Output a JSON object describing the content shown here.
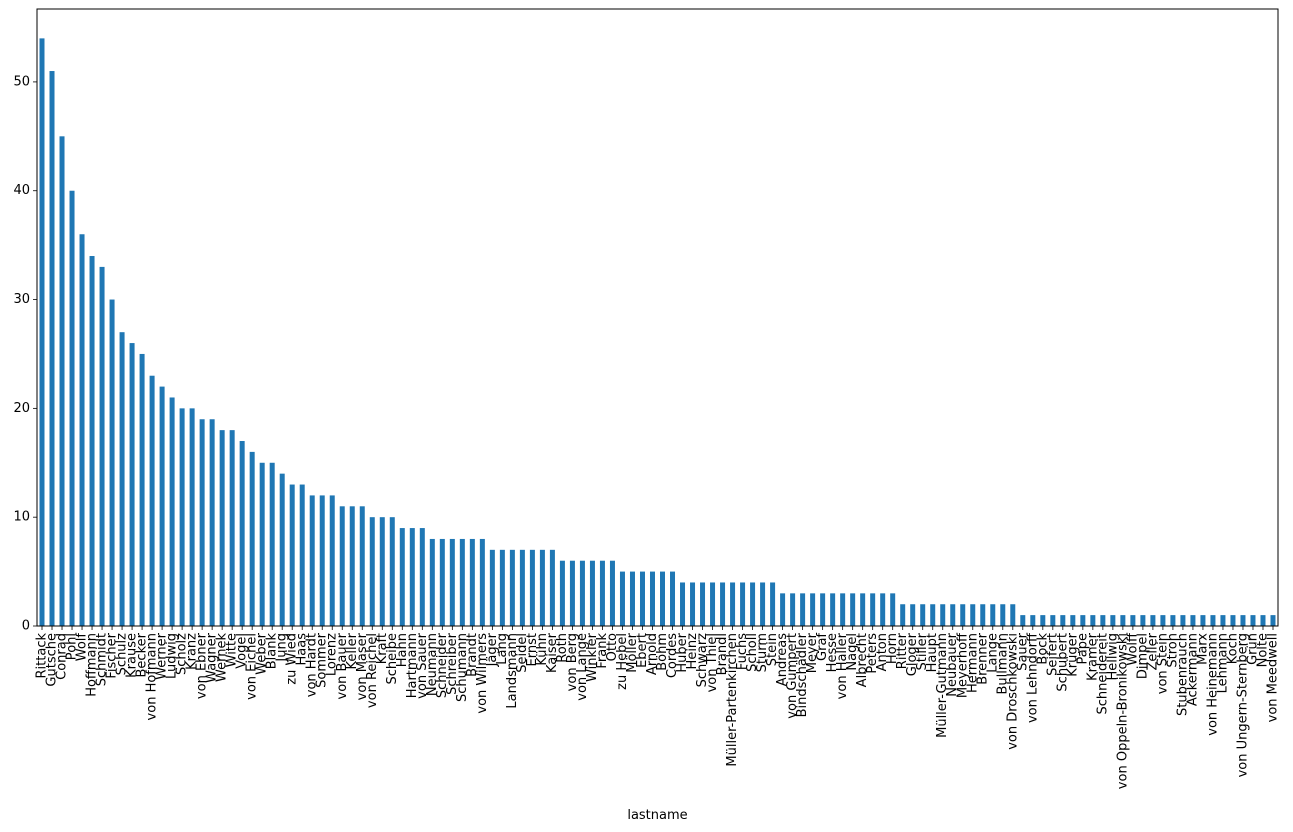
{
  "chart_data": {
    "type": "bar",
    "xlabel": "lastname",
    "ylabel": "",
    "ylim": [
      0,
      56.7
    ],
    "yticks": [
      0,
      10,
      20,
      30,
      40,
      50
    ],
    "grid": false,
    "bar_color": "#1f77b4",
    "categories": [
      "Rittack",
      "Gutsche",
      "Conrad",
      "Pohl",
      "Wolf",
      "Hoffmann",
      "Schmidt",
      "Fischer",
      "Schulz",
      "Krause",
      "Becker",
      "von Hofmann",
      "Werner",
      "Ludwig",
      "Scholz",
      "Kranz",
      "von Ebner",
      "Wagner",
      "Wernek",
      "Witte",
      "Vogel",
      "von Eichel",
      "Weber",
      "Blank",
      "Jung",
      "zu Wied",
      "Haas",
      "von Hardt",
      "Sommer",
      "Lorenz",
      "von Bauer",
      "Keller",
      "von Maser",
      "von Reichel",
      "Kraft",
      "Scheibe",
      "Hahn",
      "Hartmann",
      "von Sauer",
      "Neumann",
      "Schneider",
      "Schreiber",
      "Schumann",
      "Brandt",
      "von Wilmers",
      "Jäger",
      "Lang",
      "Landsmann",
      "Seidel",
      "Ernst",
      "Kühn",
      "Kaiser",
      "Roth",
      "von Berg",
      "von Lange",
      "Winkler",
      "Frank",
      "Otto",
      "zu Hebel",
      "Möller",
      "Ebert",
      "Arnold",
      "Böhm",
      "Cordes",
      "Huber",
      "Heinz",
      "Schwarz",
      "von Thiel",
      "Brandl",
      "Müller-Partenkirchen",
      "Fuchs",
      "Scholl",
      "Sturm",
      "Stein",
      "Andreas",
      "von Gumpert",
      "Bindschädler",
      "Meyer",
      "Graf",
      "Hesse",
      "von Haller",
      "Nagel",
      "Albrecht",
      "Peters",
      "Anton",
      "Horn",
      "Ritter",
      "Gloger",
      "Stiller",
      "Haupt",
      "Müller-Gutmann",
      "Neubauer",
      "Meyerhoff",
      "Hermann",
      "Brenner",
      "Lange",
      "Bullmann",
      "von Droschkowski",
      "Sauer",
      "von Lehndorff",
      "Bock",
      "Seifert",
      "Schubert",
      "Krüger",
      "Pape",
      "Kramer",
      "Schneidereit",
      "Hellwig",
      "von Oppeln-Bronikowski",
      "Wolff",
      "Dimpel",
      "Zeller",
      "von Stein",
      "Stroh",
      "Stubenrauch",
      "Ackermann",
      "Marx",
      "von Heinemann",
      "Lehmann",
      "Koch",
      "von Ungern-Sternberg",
      "Grün",
      "Nolte",
      "von Meedwell"
    ],
    "values": [
      54,
      51,
      45,
      40,
      36,
      34,
      33,
      30,
      27,
      26,
      25,
      23,
      22,
      21,
      20,
      20,
      19,
      19,
      18,
      18,
      17,
      16,
      15,
      15,
      14,
      13,
      13,
      12,
      12,
      12,
      11,
      11,
      11,
      10,
      10,
      10,
      9,
      9,
      9,
      8,
      8,
      8,
      8,
      8,
      8,
      7,
      7,
      7,
      7,
      7,
      7,
      7,
      6,
      6,
      6,
      6,
      6,
      6,
      5,
      5,
      5,
      5,
      5,
      5,
      4,
      4,
      4,
      4,
      4,
      4,
      4,
      4,
      4,
      4,
      3,
      3,
      3,
      3,
      3,
      3,
      3,
      3,
      3,
      3,
      3,
      3,
      2,
      2,
      2,
      2,
      2,
      2,
      2,
      2,
      2,
      2,
      2,
      2,
      1,
      1,
      1,
      1,
      1,
      1,
      1,
      1,
      1,
      1,
      1,
      1,
      1,
      1,
      1,
      1,
      1,
      1,
      1,
      1,
      1,
      1,
      1,
      1,
      1,
      1
    ]
  }
}
